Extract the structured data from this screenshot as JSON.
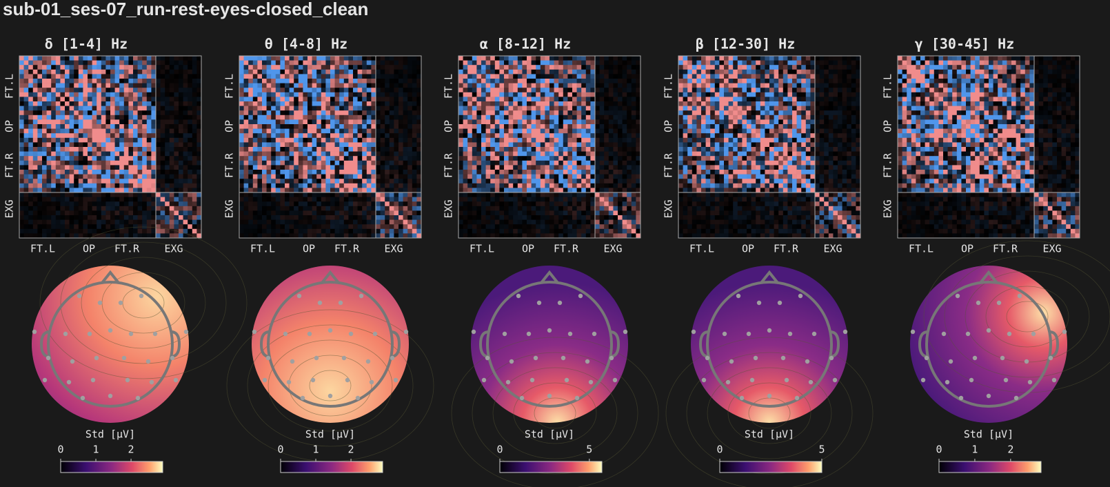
{
  "title": "sub-01_ses-07_run-rest-eyes-closed_clean",
  "panels": [
    {
      "band": "δ [1-4] Hz",
      "x_labels": [
        "FT.L",
        "OP",
        "FT.R",
        "EXG"
      ],
      "y_labels": [
        "FT.L",
        "OP",
        "FT.R",
        "EXG"
      ],
      "colorbar": {
        "label": "Std [μV]",
        "lim": [
          0,
          2.9
        ],
        "ticks": [
          0,
          1,
          2
        ]
      }
    },
    {
      "band": "θ [4-8] Hz",
      "x_labels": [
        "FT.L",
        "OP",
        "FT.R",
        "EXG"
      ],
      "y_labels": [
        "FT.L",
        "OP",
        "FT.R",
        "EXG"
      ],
      "colorbar": {
        "label": "Std [μV]",
        "lim": [
          0,
          2.9
        ],
        "ticks": [
          0,
          1,
          2
        ]
      }
    },
    {
      "band": "α [8-12] Hz",
      "x_labels": [
        "FT.L",
        "OP",
        "FT.R",
        "EXG"
      ],
      "y_labels": [
        "FT.L",
        "OP",
        "FT.R",
        "EXG"
      ],
      "colorbar": {
        "label": "Std [μV]",
        "lim": [
          0,
          5.7
        ],
        "ticks": [
          0,
          5
        ]
      }
    },
    {
      "band": "β [12-30] Hz",
      "x_labels": [
        "FT.L",
        "OP",
        "FT.R",
        "EXG"
      ],
      "y_labels": [
        "FT.L",
        "OP",
        "FT.R",
        "EXG"
      ],
      "colorbar": {
        "label": "Std [μV]",
        "lim": [
          0,
          5
        ],
        "ticks": [
          0,
          5
        ]
      }
    },
    {
      "band": "γ [30-45] Hz",
      "x_labels": [
        "FT.L",
        "OP",
        "FT.R",
        "EXG"
      ],
      "y_labels": [
        "FT.L",
        "OP",
        "FT.R",
        "EXG"
      ],
      "colorbar": {
        "label": "Std [μV]",
        "lim": [
          0,
          2.85
        ],
        "ticks": [
          0,
          1,
          2
        ]
      }
    }
  ]
}
